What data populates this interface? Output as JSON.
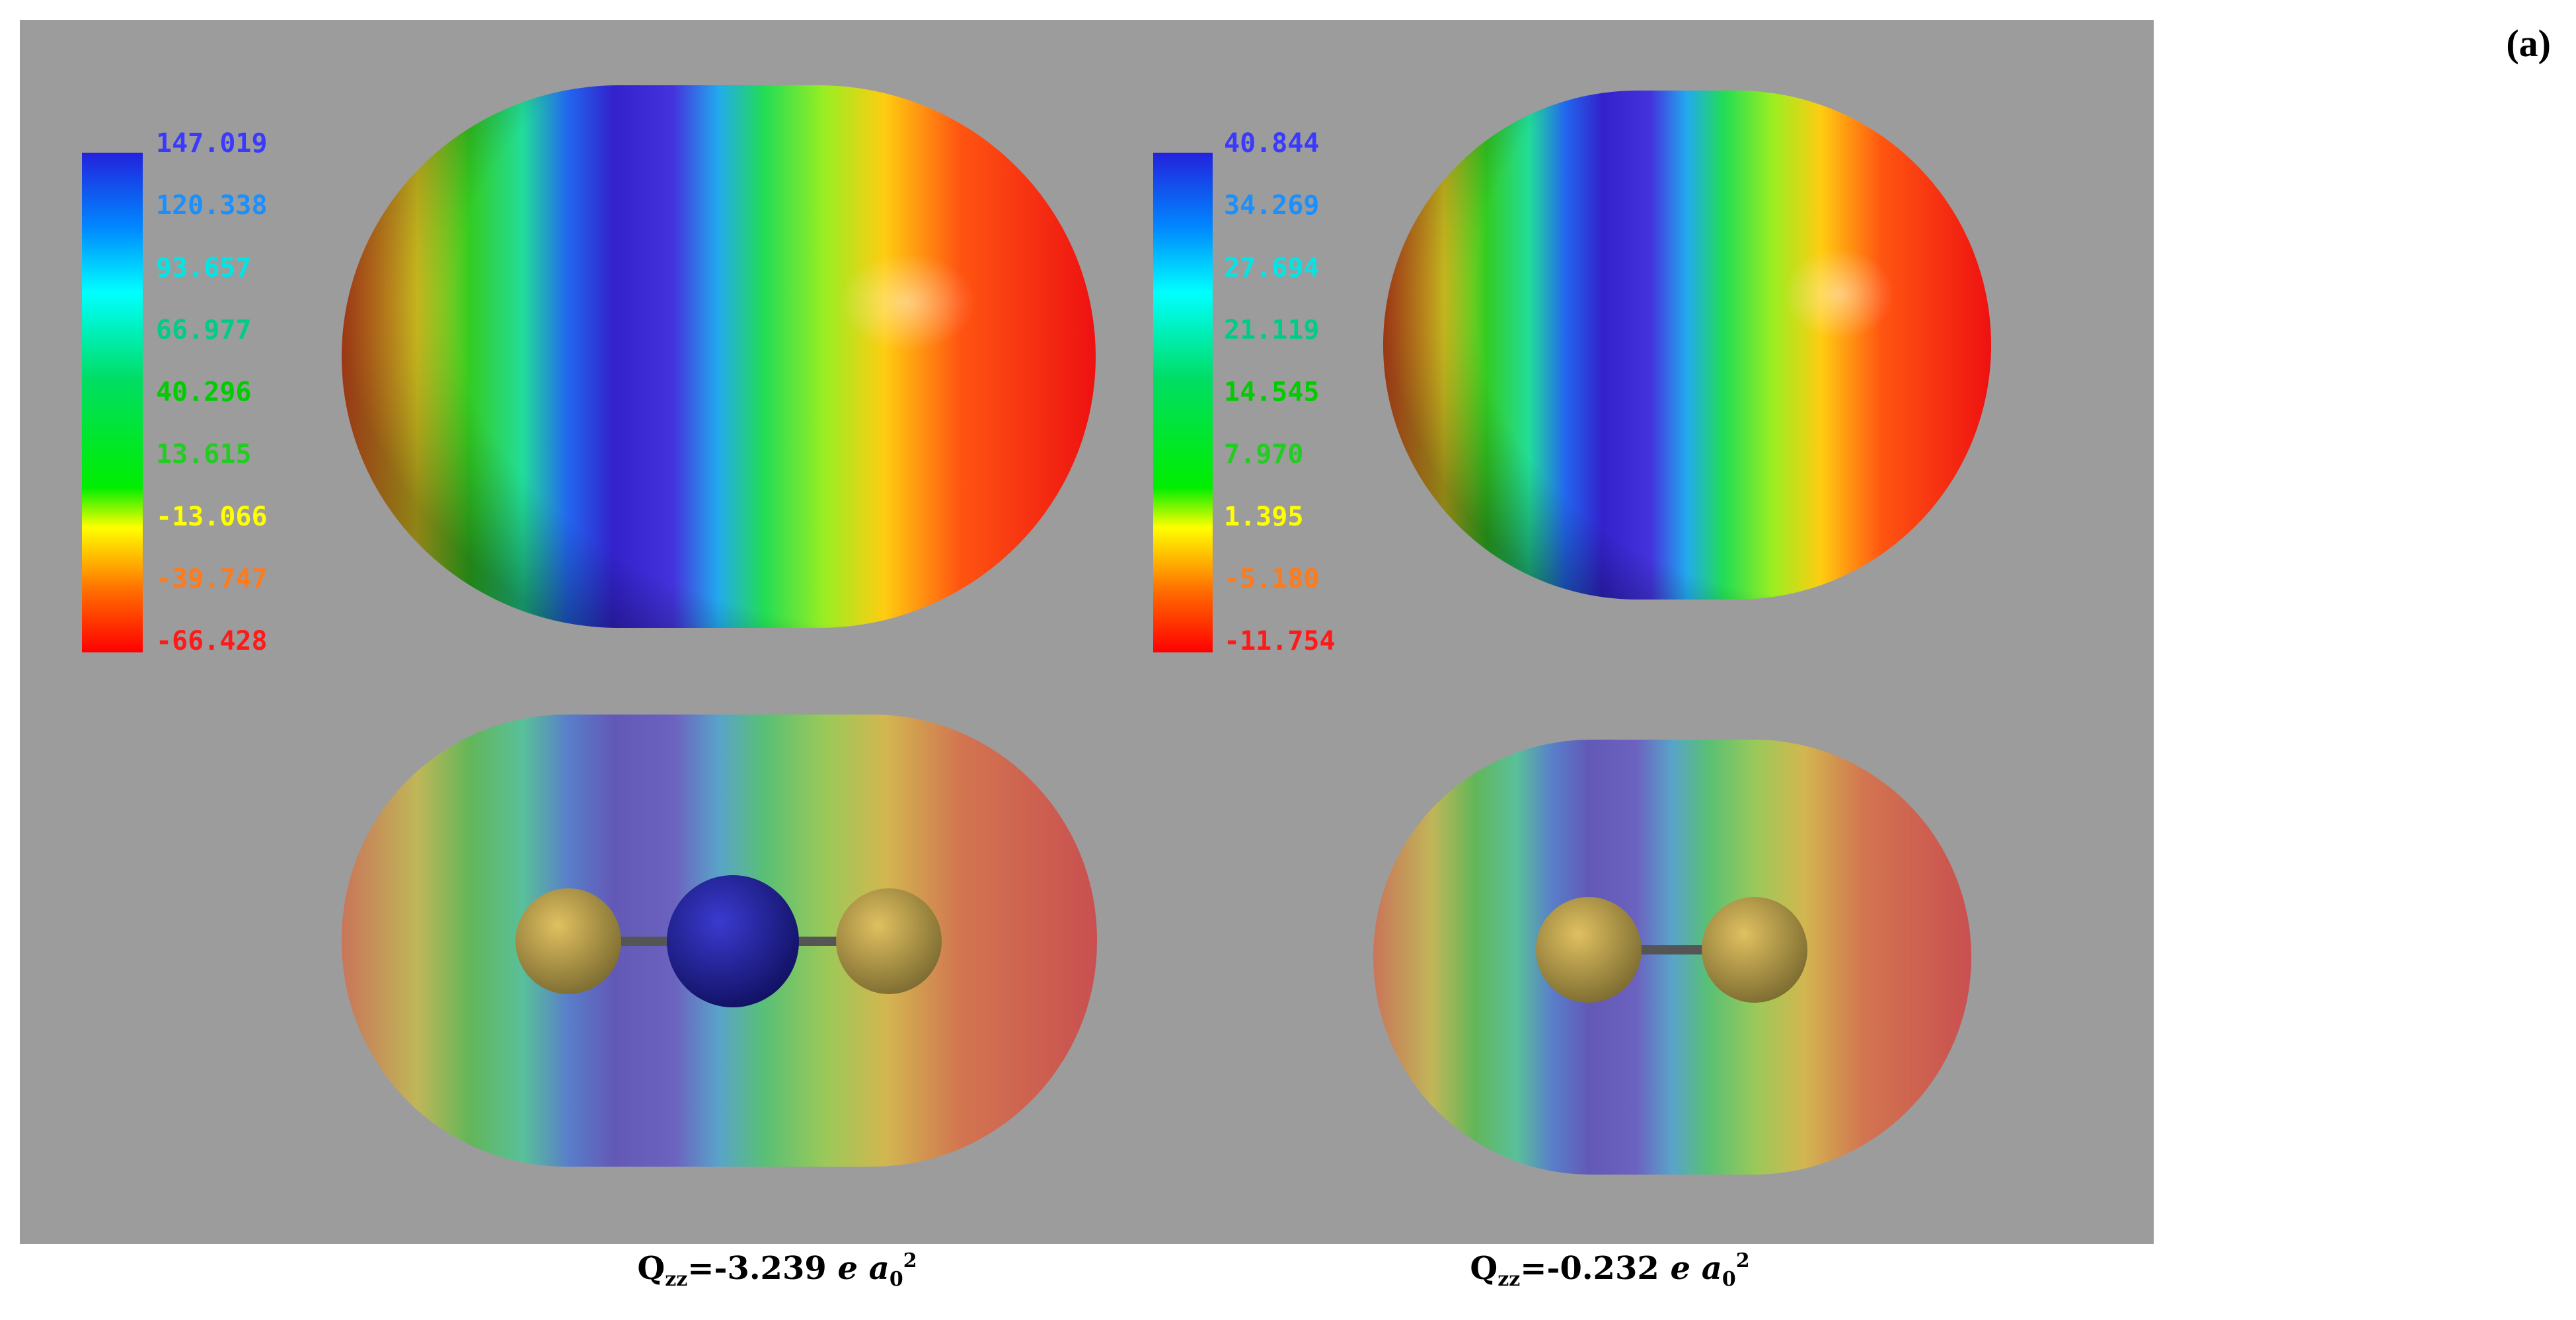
{
  "panel_label": "(a)",
  "left_colorbar": {
    "labels": [
      "147.019",
      "120.338",
      "93.657",
      "66.977",
      "40.296",
      "13.615",
      "-13.066",
      "-39.747",
      "-66.428"
    ]
  },
  "right_colorbar": {
    "labels": [
      "40.844",
      "34.269",
      "27.694",
      "21.119",
      "14.545",
      "7.970",
      "1.395",
      "-5.180",
      "-11.754"
    ]
  },
  "left_caption": {
    "symbol": "Q",
    "subscript": "zz",
    "value": "=-3.239 ",
    "e": "e",
    "a": "a",
    "a_subscript": "0",
    "a_superscript": "2"
  },
  "right_caption": {
    "symbol": "Q",
    "subscript": "zz",
    "value": "=-0.232 ",
    "e": "e",
    "a": "a",
    "a_subscript": "0",
    "a_superscript": "2"
  }
}
